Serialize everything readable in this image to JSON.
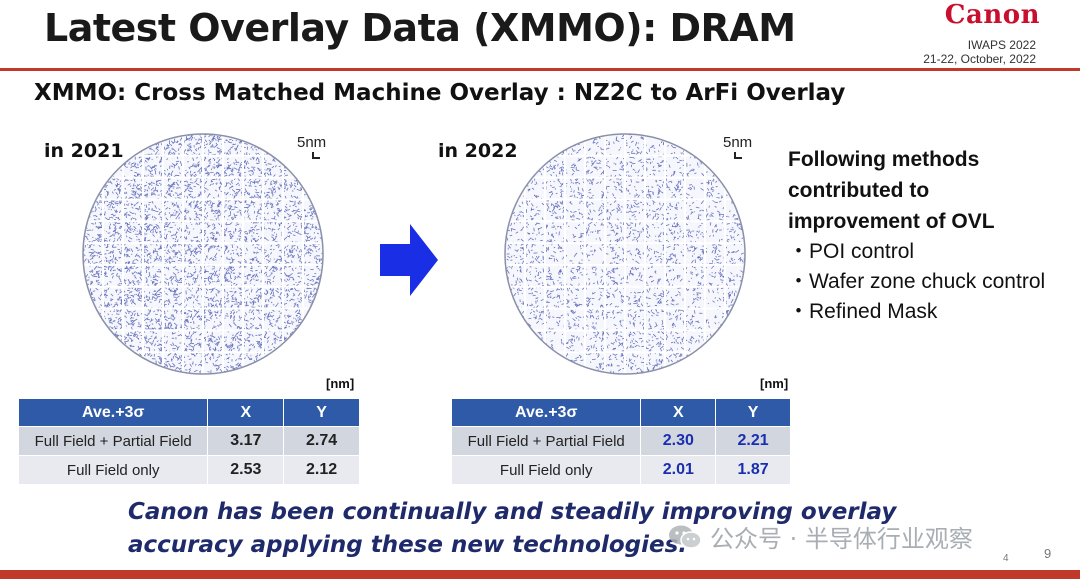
{
  "header": {
    "title": "Latest Overlay Data (XMMO): DRAM",
    "logo": "Canon",
    "conference": "IWAPS 2022",
    "date": "21-22, October, 2022"
  },
  "subtitle": "XMMO: Cross Matched Machine Overlay :  NZ2C to ArFi Overlay",
  "left": {
    "year": "in 2021",
    "scale": "5nm",
    "unit": "[nm]",
    "table": {
      "headers": [
        "Ave.+3σ",
        "X",
        "Y"
      ],
      "rows": [
        {
          "label": "Full Field + Partial Field",
          "x": "3.17",
          "y": "2.74"
        },
        {
          "label": "Full Field only",
          "x": "2.53",
          "y": "2.12"
        }
      ]
    }
  },
  "right": {
    "year": "in 2022",
    "scale": "5nm",
    "unit": "[nm]",
    "table": {
      "headers": [
        "Ave.+3σ",
        "X",
        "Y"
      ],
      "rows": [
        {
          "label": "Full Field + Partial Field",
          "x": "2.30",
          "y": "2.21"
        },
        {
          "label": "Full Field only",
          "x": "2.01",
          "y": "1.87"
        }
      ]
    }
  },
  "methods": {
    "heading": [
      "Following methods",
      "contributed to",
      "improvement of OVL"
    ],
    "items": [
      "・POI control",
      "・Wafer zone chuck control",
      "・Refined Mask"
    ]
  },
  "conclusion": {
    "line1": "Canon has been continually and steadily improving overlay",
    "line2": "accuracy applying these new technologies."
  },
  "watermark": "公众号 · 半导体行业观察",
  "page_numbers": {
    "small": "4",
    "main": "9"
  },
  "colors": {
    "accent_red": "#c0392b",
    "table_header": "#2e5aa7",
    "value_blue": "#1a2fb0",
    "conclusion": "#1f2a6b"
  },
  "icons": {
    "arrow": "right-arrow-icon",
    "wafer": "wafer-map-icon"
  }
}
